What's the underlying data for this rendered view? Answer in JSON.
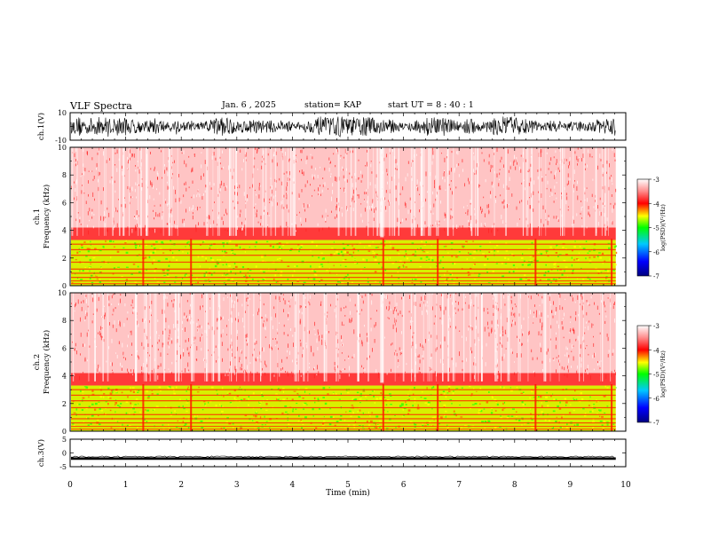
{
  "header": {
    "title": "VLF Spectra",
    "date": "Jan. 6 , 2025",
    "station": "station= KAP",
    "start_ut": "start UT =  8 : 40 : 1"
  },
  "chart_data": [
    {
      "type": "line",
      "panel": "ch1-waveform",
      "ylabel": "ch.1(V)",
      "ylim": [
        -10,
        10
      ],
      "yticks": [
        -10,
        10
      ],
      "xlim": [
        0,
        10
      ],
      "description_values": "dense noisy waveform spanning roughly -7 to 7 V"
    },
    {
      "type": "heatmap",
      "panel": "ch1-spectrogram",
      "ylabel": "ch.1 Frequency (kHz)",
      "xlim": [
        0,
        10
      ],
      "ylim": [
        0,
        10
      ],
      "yticks": [
        0,
        2,
        4,
        6,
        8,
        10
      ],
      "data_extent_min": 9.82,
      "colorbar": {
        "label": "log(PSD)(V²/Hz)",
        "min": -7,
        "max": -3,
        "ticks": [
          -3,
          -4,
          -5,
          -6,
          -7
        ]
      },
      "bands": [
        {
          "from_khz": 0.0,
          "to_khz": 3.3,
          "level": "green-yellow (approx -4.8 to -5.3)"
        },
        {
          "from_khz": 3.3,
          "to_khz": 4.2,
          "level": "red (approx -4)"
        },
        {
          "from_khz": 4.2,
          "to_khz": 10.0,
          "level": "pale red/white (approx -3.3 to -3.8)"
        }
      ]
    },
    {
      "type": "heatmap",
      "panel": "ch2-spectrogram",
      "ylabel": "ch.2 Frequency (kHz)",
      "xlim": [
        0,
        10
      ],
      "ylim": [
        0,
        10
      ],
      "yticks": [
        0,
        2,
        4,
        6,
        8,
        10
      ],
      "data_extent_min": 9.82,
      "colorbar": {
        "label": "log(PSD)(V²/Hz)",
        "min": -7,
        "max": -3,
        "ticks": [
          -3,
          -4,
          -5,
          -6,
          -7
        ]
      },
      "bands": [
        {
          "from_khz": 0.0,
          "to_khz": 3.3,
          "level": "green-yellow (approx -4.8 to -5.3)"
        },
        {
          "from_khz": 3.3,
          "to_khz": 4.2,
          "level": "red (approx -4)"
        },
        {
          "from_khz": 4.2,
          "to_khz": 10.0,
          "level": "pale red/white (approx -3.3 to -3.8)"
        }
      ]
    },
    {
      "type": "line",
      "panel": "ch3-waveform",
      "ylabel": "ch.3(V)",
      "ylim": [
        -5,
        5
      ],
      "yticks": [
        -5,
        0,
        5
      ],
      "xlim": [
        0,
        10
      ],
      "description_values": "near-constant band around -1.8 to -2.4 V"
    }
  ],
  "xaxis": {
    "label": "Time (min)",
    "ticks": [
      0,
      1,
      2,
      3,
      4,
      5,
      6,
      7,
      8,
      9,
      10
    ]
  },
  "palette": {
    "axis": "#000000",
    "red": "#ff0000",
    "green": "#00ff00",
    "yellow": "#ffff00",
    "blue": "#0000ff",
    "navy": "#000080"
  }
}
